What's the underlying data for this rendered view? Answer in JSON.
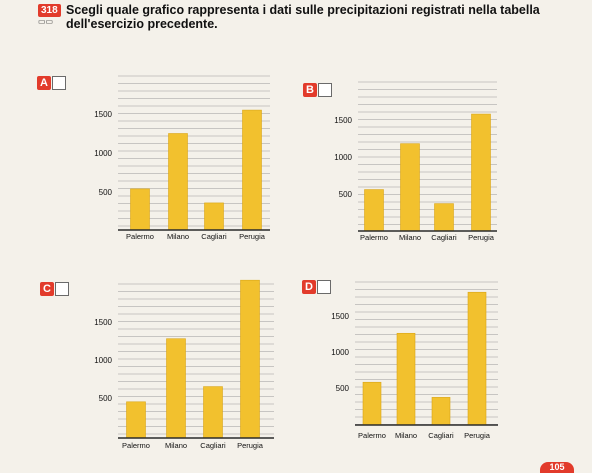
{
  "exercise": {
    "number": "318",
    "prompt_line1": "Scegli quale grafico rappresenta i dati sulle precipitazioni registrati nella tabella",
    "prompt_line2": "dell'esercizio precedente."
  },
  "page_number": "105",
  "colors": {
    "bar": "#f2c12e",
    "bar_edge": "#d9a618",
    "axis": "#2a2a2a",
    "grid": "#9a9a9a",
    "accent": "#e23b2b"
  },
  "chart_data": [
    {
      "type": "bar",
      "option": "A",
      "categories": [
        "Palermo",
        "Milano",
        "Cagliari",
        "Perugia"
      ],
      "values": [
        540,
        1250,
        360,
        1550
      ],
      "yticks": [
        "500",
        "1000",
        "1500"
      ],
      "ylim": [
        0,
        1800
      ]
    },
    {
      "type": "bar",
      "option": "B",
      "categories": [
        "Palermo",
        "Milano",
        "Cagliari",
        "Perugia"
      ],
      "values": [
        560,
        1180,
        370,
        1580
      ],
      "yticks": [
        "500",
        "1000",
        "1500"
      ],
      "ylim": [
        0,
        1800
      ]
    },
    {
      "type": "bar",
      "option": "C",
      "categories": [
        "Palermo",
        "Milano",
        "Cagliari",
        "Perugia"
      ],
      "values": [
        450,
        1280,
        650,
        2050
      ],
      "yticks": [
        "500",
        "1000",
        "1500"
      ],
      "ylim": [
        0,
        2100
      ]
    },
    {
      "type": "bar",
      "option": "D",
      "categories": [
        "Palermo",
        "Milano",
        "Cagliari",
        "Perugia"
      ],
      "values": [
        580,
        1260,
        370,
        1830
      ],
      "yticks": [
        "500",
        "1000",
        "1500"
      ],
      "ylim": [
        0,
        2000
      ]
    }
  ]
}
